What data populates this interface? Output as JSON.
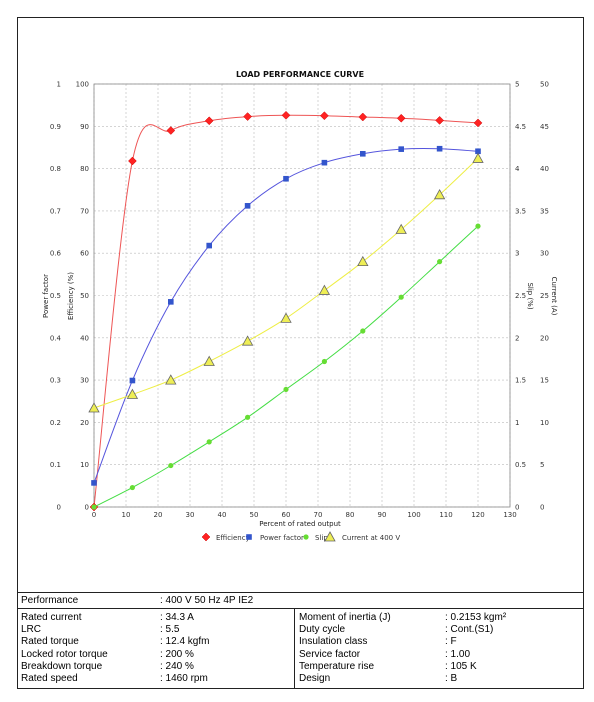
{
  "chart_data": {
    "type": "line",
    "title": "LOAD PERFORMANCE CURVE",
    "xlabel": "Percent of rated output",
    "x_ticks": [
      0,
      10,
      20,
      30,
      40,
      50,
      60,
      70,
      80,
      90,
      100,
      110,
      120,
      130
    ],
    "xlim": [
      0,
      130
    ],
    "axes": {
      "pf": {
        "label": "Power factor",
        "ticks": [
          "0",
          "0.1",
          "0.2",
          "0.3",
          "0.4",
          "0.5",
          "0.6",
          "0.7",
          "0.8",
          "0.9",
          "1"
        ],
        "lim": [
          0,
          1
        ]
      },
      "eff": {
        "label": "Efficiency (%)",
        "ticks": [
          "0",
          "10",
          "20",
          "30",
          "40",
          "50",
          "60",
          "70",
          "80",
          "90",
          "100"
        ],
        "lim": [
          0,
          100
        ]
      },
      "slip": {
        "label": "Slip (%)",
        "ticks": [
          "0",
          "0.5",
          "1",
          "1.5",
          "2",
          "2.5",
          "3",
          "3.5",
          "4",
          "4.5",
          "5"
        ],
        "lim": [
          0,
          5
        ]
      },
      "current": {
        "label": "Current (A)",
        "ticks": [
          "0",
          "5",
          "10",
          "15",
          "20",
          "25",
          "30",
          "35",
          "40",
          "45",
          "50"
        ],
        "lim": [
          0,
          50
        ]
      }
    },
    "series": [
      {
        "name": "Efficiency",
        "axis": "eff",
        "color": "#ff2222",
        "line_color": "#ee5555",
        "marker": "diamond",
        "x": [
          0,
          12,
          24,
          36,
          48,
          60,
          72,
          84,
          96,
          108,
          120
        ],
        "y": [
          0,
          81.8,
          89,
          91.3,
          92.3,
          92.6,
          92.5,
          92.2,
          91.9,
          91.4,
          90.8
        ]
      },
      {
        "name": "Power factor",
        "axis": "pf",
        "color": "#3355cc",
        "line_color": "#5555dd",
        "marker": "square",
        "x": [
          0,
          12,
          24,
          36,
          48,
          60,
          72,
          84,
          96,
          108,
          120
        ],
        "y": [
          0.057,
          0.299,
          0.485,
          0.618,
          0.712,
          0.776,
          0.814,
          0.835,
          0.846,
          0.847,
          0.841
        ]
      },
      {
        "name": "Slip",
        "axis": "slip",
        "color": "#66dd33",
        "line_color": "#44dd44",
        "marker": "circle",
        "x": [
          0,
          12,
          24,
          36,
          48,
          60,
          72,
          84,
          96,
          108,
          120
        ],
        "y": [
          0,
          0.23,
          0.49,
          0.77,
          1.06,
          1.39,
          1.72,
          2.08,
          2.48,
          2.9,
          3.32
        ]
      },
      {
        "name": "Current at 400 V",
        "axis": "current",
        "color": "#eeee55",
        "line_color": "#eeee44",
        "marker": "triangle",
        "x": [
          0,
          12,
          24,
          36,
          48,
          60,
          72,
          84,
          96,
          108,
          120
        ],
        "y": [
          11.7,
          13.3,
          15.0,
          17.2,
          19.6,
          22.3,
          25.6,
          29.0,
          32.8,
          36.9,
          41.2
        ]
      }
    ]
  },
  "specs": {
    "performance_label": "Performance",
    "performance_value": ": 400 V 50 Hz 4P IE2",
    "left": [
      {
        "label": "Rated current",
        "value": ": 34.3 A"
      },
      {
        "label": "LRC",
        "value": ": 5.5"
      },
      {
        "label": "Rated torque",
        "value": ": 12.4 kgfm"
      },
      {
        "label": "Locked rotor torque",
        "value": ": 200 %"
      },
      {
        "label": "Breakdown torque",
        "value": ": 240 %"
      },
      {
        "label": "Rated speed",
        "value": ": 1460 rpm"
      }
    ],
    "right": [
      {
        "label": "Moment of inertia (J)",
        "value": ": 0.2153 kgm²"
      },
      {
        "label": "Duty cycle",
        "value": ": Cont.(S1)"
      },
      {
        "label": "Insulation class",
        "value": ": F"
      },
      {
        "label": "Service factor",
        "value": ": 1.00"
      },
      {
        "label": "Temperature rise",
        "value": ": 105 K"
      },
      {
        "label": "Design",
        "value": ": B"
      }
    ]
  }
}
